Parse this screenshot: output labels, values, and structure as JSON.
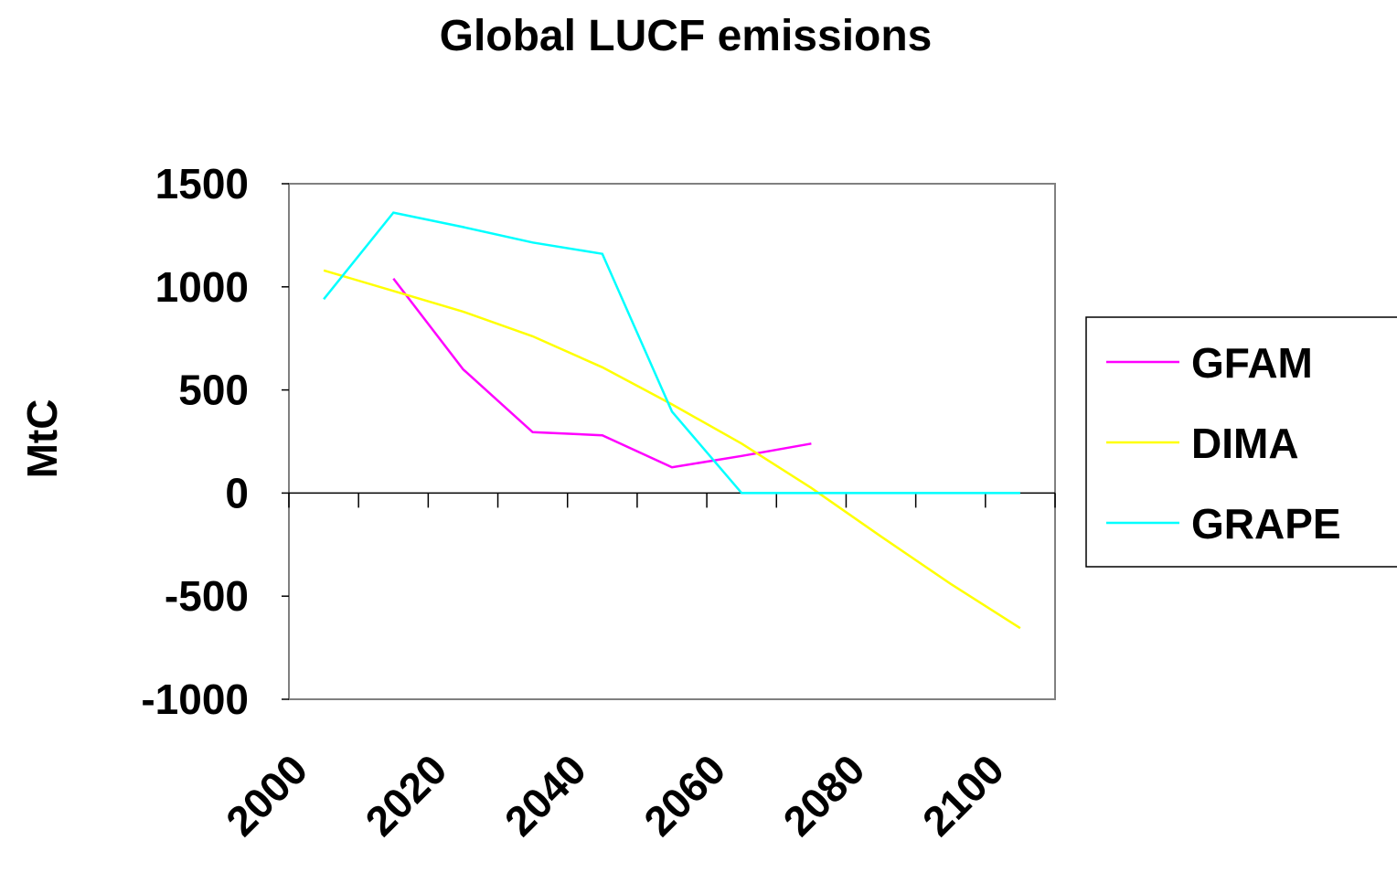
{
  "chart_data": {
    "type": "line",
    "title": "Global LUCF emissions",
    "ylabel": "MtC",
    "xlabel": "",
    "ylim": [
      -1000,
      1500
    ],
    "yticks": [
      1500,
      1000,
      500,
      0,
      -500,
      -1000
    ],
    "xtick_labels": [
      "2000",
      "2020",
      "2040",
      "2060",
      "2080",
      "2100"
    ],
    "x_categories": [
      2000,
      2010,
      2020,
      2030,
      2040,
      2050,
      2060,
      2070,
      2080,
      2090,
      2100
    ],
    "legend_position": "right",
    "grid": false,
    "series": [
      {
        "name": "GFAM",
        "color": "#ff00ff",
        "x": [
          2010,
          2020,
          2030,
          2040,
          2050,
          2060,
          2070
        ],
        "y": [
          1040,
          600,
          295,
          280,
          125,
          180,
          240
        ]
      },
      {
        "name": "DIMA",
        "color": "#ffff00",
        "x": [
          2000,
          2010,
          2020,
          2030,
          2040,
          2050,
          2060,
          2070,
          2080,
          2090,
          2100
        ],
        "y": [
          1080,
          980,
          880,
          760,
          610,
          430,
          240,
          25,
          -210,
          -440,
          -655
        ]
      },
      {
        "name": "GRAPE",
        "color": "#00ffff",
        "x": [
          2000,
          2010,
          2020,
          2030,
          2040,
          2050,
          2060,
          2070,
          2080,
          2090,
          2100
        ],
        "y": [
          940,
          1360,
          1290,
          1215,
          1160,
          395,
          0,
          0,
          0,
          0,
          0
        ]
      }
    ]
  }
}
